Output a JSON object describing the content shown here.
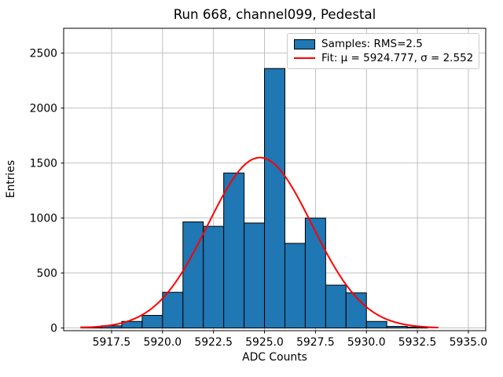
{
  "figure": {
    "title": "Run 668, channel099, Pedestal"
  },
  "chart_data": {
    "type": "bar",
    "subtype": "histogram_with_gaussian_fit",
    "title": "Run 668, channel099, Pedestal",
    "xlabel": "ADC Counts",
    "ylabel": "Entries",
    "bin_width": 1,
    "bin_left_edges": [
      5916,
      5917,
      5918,
      5919,
      5920,
      5921,
      5922,
      5923,
      5924,
      5925,
      5926,
      5927,
      5928,
      5929,
      5930,
      5931,
      5932
    ],
    "values": [
      10,
      20,
      60,
      115,
      325,
      965,
      925,
      1410,
      955,
      2360,
      770,
      1000,
      390,
      320,
      60,
      15,
      8
    ],
    "xlim": [
      5915.15,
      5935.85
    ],
    "ylim": [
      -24,
      2726
    ],
    "xticks": [
      5917.5,
      5920.0,
      5922.5,
      5925.0,
      5927.5,
      5930.0,
      5932.5,
      5935.0
    ],
    "xtick_labels": [
      "5917.5",
      "5920.0",
      "5922.5",
      "5925.0",
      "5927.5",
      "5930.0",
      "5932.5",
      "5935.0"
    ],
    "yticks": [
      0,
      500,
      1000,
      1500,
      2000,
      2500
    ],
    "ytick_labels": [
      "0",
      "500",
      "1000",
      "1500",
      "2000",
      "2500"
    ],
    "grid": true,
    "grid_color": "#b0b0b0",
    "bar_color": "#1f77b4",
    "bar_edge_color": "#000000",
    "fit": {
      "shape": "gaussian",
      "mu": 5924.777,
      "sigma": 2.552,
      "amplitude": 1550,
      "color": "#ff0000",
      "x_range": [
        5916,
        5933.5
      ]
    },
    "legend": {
      "position": "upper right",
      "items": [
        {
          "swatch": "patch",
          "color": "#1f77b4",
          "label": "Samples: RMS=2.5"
        },
        {
          "swatch": "line",
          "color": "#ff0000",
          "label": "Fit: μ = 5924.777, σ = 2.552"
        }
      ]
    }
  }
}
